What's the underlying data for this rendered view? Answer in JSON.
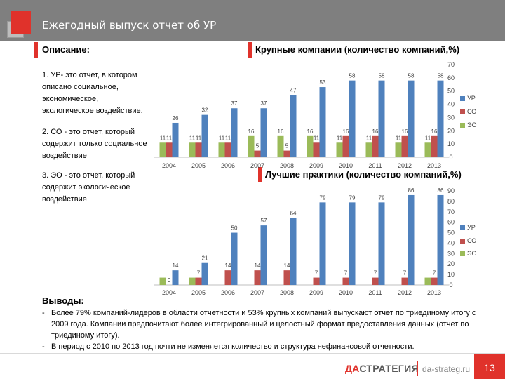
{
  "header": {
    "title": "Ежегодный выпуск отчет об УР"
  },
  "description": {
    "title": "Описание:",
    "items": [
      "1. УР- это отчет, в котором описано социальное, экономическое, экологическое воздействие.",
      "2. СО - это отчет, который содержит только социальное воздействие",
      "3. ЭО - это отчет, который содержит экологическое воздействие"
    ]
  },
  "colors": {
    "ur": "#4f81bd",
    "co": "#c0504d",
    "eo": "#9bbb59",
    "accent": "#e0322b"
  },
  "chart_data": [
    {
      "type": "bar",
      "title": "Крупные компании (количество компаний,%)",
      "categories": [
        "2004",
        "2005",
        "2006",
        "2007",
        "2008",
        "2009",
        "2010",
        "2011",
        "2012",
        "2013"
      ],
      "series": [
        {
          "name": "УР",
          "values": [
            26,
            32,
            37,
            37,
            47,
            53,
            58,
            58,
            58,
            58
          ]
        },
        {
          "name": "СО",
          "values": [
            11,
            11,
            11,
            5,
            5,
            11,
            16,
            16,
            16,
            16
          ]
        },
        {
          "name": "ЭО",
          "values": [
            11,
            11,
            11,
            16,
            16,
            16,
            11,
            11,
            11,
            11
          ]
        }
      ],
      "labels": {
        "УР": [
          "26",
          "32",
          "37",
          "37",
          "47",
          "53",
          "58",
          "58",
          "58",
          "58"
        ],
        "СО": [
          "11",
          "11",
          "11",
          "5",
          "5",
          "11",
          "16",
          "16",
          "16",
          "16"
        ],
        "ЭО": [
          "11",
          "11",
          "11",
          "16",
          "16",
          "16",
          "11",
          "11",
          "11",
          "11"
        ]
      },
      "ylim": [
        0,
        70
      ],
      "yticks": [
        0,
        10,
        20,
        30,
        40,
        50,
        60,
        70
      ],
      "legend": [
        "УР",
        "СО",
        "ЭО"
      ]
    },
    {
      "type": "bar",
      "title": "Лучшие практики (количество компаний,%)",
      "categories": [
        "2004",
        "2005",
        "2006",
        "2007",
        "2008",
        "2009",
        "2010",
        "2011",
        "2012",
        "2013"
      ],
      "series": [
        {
          "name": "УР",
          "values": [
            14,
            21,
            50,
            57,
            64,
            79,
            79,
            79,
            86,
            86
          ]
        },
        {
          "name": "СО",
          "values": [
            0,
            7,
            14,
            14,
            14,
            7,
            7,
            7,
            7,
            7
          ]
        },
        {
          "name": "ЭО",
          "values": [
            7,
            7,
            0,
            0,
            0,
            0,
            0,
            0,
            0,
            7
          ]
        }
      ],
      "labels": {
        "УР": [
          "14",
          "21",
          "50",
          "57",
          "64",
          "79",
          "79",
          "79",
          "86",
          "86"
        ],
        "СО": [
          "0",
          "7",
          "14",
          "14",
          "14",
          "7",
          "7",
          "7",
          "7",
          "7"
        ],
        "ЭО": [
          "",
          "",
          "",
          "",
          "",
          "",
          "",
          "",
          "",
          ""
        ]
      },
      "ylim": [
        0,
        90
      ],
      "yticks": [
        0,
        10,
        20,
        30,
        40,
        50,
        60,
        70,
        80,
        90
      ],
      "legend": [
        "УР",
        "СО",
        "ЭО"
      ]
    }
  ],
  "conclusions": {
    "title": "Выводы:",
    "items": [
      "Более 79% компаний-лидеров в области отчетности и 53% крупных компаний выпускают отчет по триединому итогу с 2009 года. Компании предпочитают более интегрированный и целостный формат предоставления данных (отчет по триединому итогу).",
      "В период с 2010 по 2013 год почти не изменяется количество и структура нефинансовой отчетности."
    ]
  },
  "footer": {
    "logo_part1": "ДА",
    "logo_part2": "СТРАТЕГИЯ",
    "site": "da-strateg.ru",
    "page": "13"
  }
}
